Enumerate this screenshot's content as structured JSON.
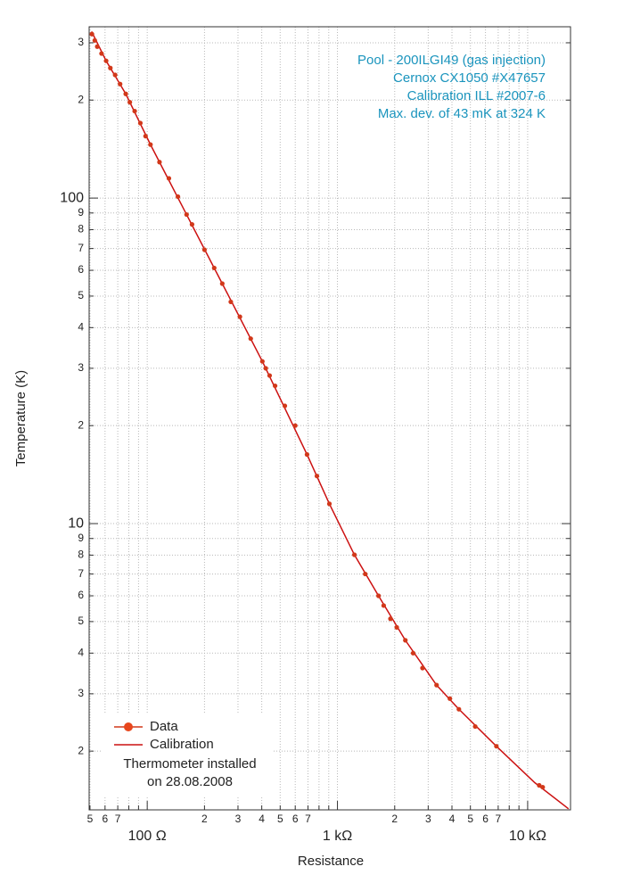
{
  "chart_data": {
    "type": "scatter",
    "x_label": "Resistance",
    "y_label": "Temperature (K)",
    "xlog": true,
    "ylog": true,
    "grid": true,
    "legend": "bottom-left",
    "xlim": [
      49.5,
      16800
    ],
    "ylim": [
      1.32,
      336
    ],
    "xticks": [
      {
        "value": 50,
        "label": "5"
      },
      {
        "value": 60,
        "label": "6"
      },
      {
        "value": 70,
        "label": "7"
      },
      {
        "value": 100,
        "label": "100 Ω"
      },
      {
        "value": 200,
        "label": "2"
      },
      {
        "value": 300,
        "label": "3"
      },
      {
        "value": 400,
        "label": "4"
      },
      {
        "value": 500,
        "label": "5"
      },
      {
        "value": 600,
        "label": "6"
      },
      {
        "value": 700,
        "label": "7"
      },
      {
        "value": 1000,
        "label": "1 kΩ"
      },
      {
        "value": 2000,
        "label": "2"
      },
      {
        "value": 3000,
        "label": "3"
      },
      {
        "value": 4000,
        "label": "4"
      },
      {
        "value": 5000,
        "label": "5"
      },
      {
        "value": 6000,
        "label": "6"
      },
      {
        "value": 7000,
        "label": "7"
      },
      {
        "value": 10000,
        "label": "10 kΩ"
      }
    ],
    "xminor_ticks": [
      80,
      90,
      800,
      900,
      8000,
      9000
    ],
    "yticks": [
      2,
      3,
      4,
      5,
      6,
      7,
      8,
      9,
      10,
      {
        "value": 20,
        "label": "2"
      },
      {
        "value": 30,
        "label": "3"
      },
      {
        "value": 40,
        "label": "4"
      },
      {
        "value": 50,
        "label": "5"
      },
      {
        "value": 60,
        "label": "6"
      },
      {
        "value": 70,
        "label": "7"
      },
      {
        "value": 80,
        "label": "8"
      },
      {
        "value": 90,
        "label": "9"
      },
      100,
      {
        "value": 200,
        "label": "2"
      },
      {
        "value": 300,
        "label": "3"
      }
    ],
    "annotations": [
      "Pool - 200ILGI49 (gas injection)",
      "Cernox CX1050 #X47657",
      "Calibration ILL #2007-6",
      "Max. dev. of 43 mK at 324 K"
    ],
    "legend_note": [
      "Thermometer installed",
      "on 28.08.2008"
    ],
    "series": [
      {
        "name": "Data",
        "type": "scatter",
        "color": "#d2381a",
        "x": [
          51.2,
          53,
          54.6,
          57.5,
          60.8,
          64,
          67.8,
          72,
          77.1,
          81,
          85.9,
          92,
          98,
          104,
          116,
          130,
          145,
          161,
          172,
          200,
          225,
          248,
          275,
          307,
          350,
          403,
          420,
          440,
          470,
          529,
          600,
          692,
          780,
          907,
          1228,
          1400,
          1644,
          1750,
          1900,
          2050,
          2275,
          2500,
          2800,
          3320,
          3900,
          4350,
          5300,
          6850,
          11500,
          12000
        ],
        "values": [
          319,
          305,
          292,
          278,
          264,
          251,
          239,
          224,
          209,
          197,
          185,
          170,
          155,
          146,
          129,
          115,
          101,
          89,
          83,
          69.4,
          61,
          54.6,
          48,
          43.2,
          37,
          31.5,
          30,
          28.5,
          26.5,
          23,
          20,
          16.3,
          14,
          11.5,
          8.02,
          7.0,
          6.0,
          5.6,
          5.1,
          4.8,
          4.38,
          4.0,
          3.6,
          3.19,
          2.9,
          2.69,
          2.38,
          2.07,
          1.57,
          1.55
        ]
      },
      {
        "name": "Calibration",
        "type": "line",
        "color": "#cc1111",
        "x": [
          51,
          60.8,
          77.1,
          104,
          161,
          248,
          403,
          692,
          907,
          1228,
          1644,
          2275,
          3320,
          4350,
          6850,
          10900,
          16400
        ],
        "values": [
          325,
          264,
          209,
          146,
          89,
          54.6,
          31.5,
          16.3,
          11.5,
          8.02,
          6.0,
          4.38,
          3.19,
          2.69,
          2.07,
          1.6,
          1.33
        ]
      }
    ]
  }
}
